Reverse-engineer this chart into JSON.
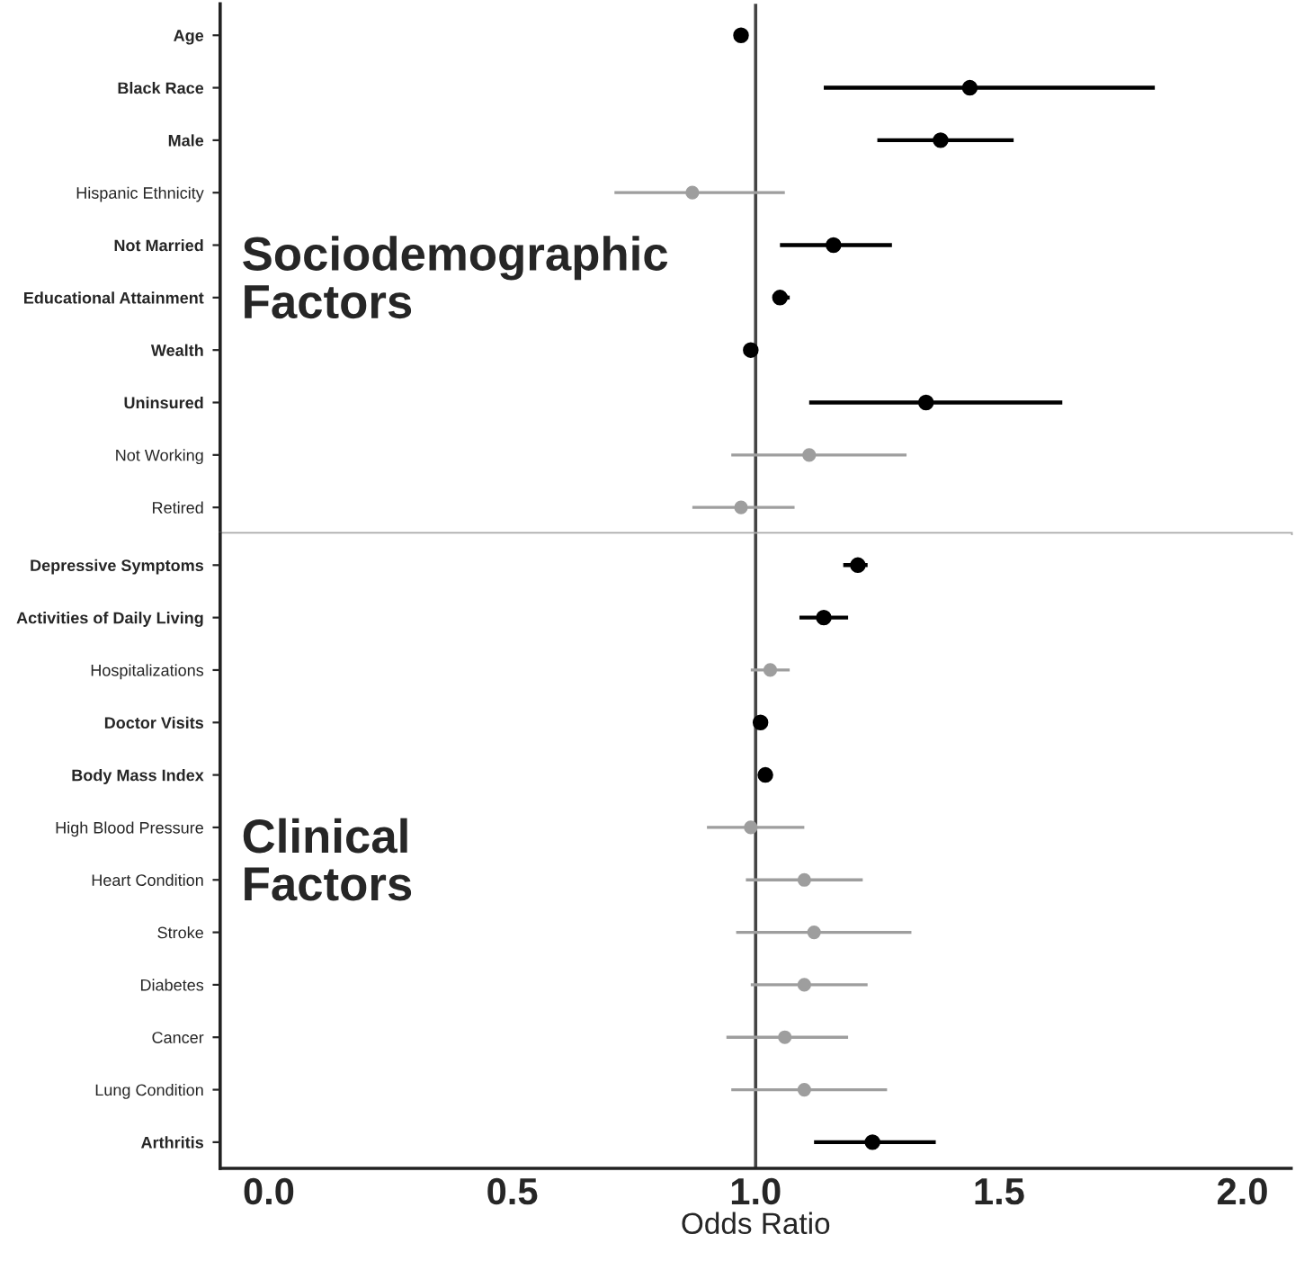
{
  "chart_data": [
    {
      "type": "scatter",
      "orientation": "horizontal",
      "tick_labels": "y",
      "categories": [
        "Age",
        "Black Race",
        "Male",
        "Hispanic Ethnicity",
        "Not Married",
        "Educational Attainment",
        "Wealth",
        "Uninsured",
        "Not Working",
        "Retired"
      ],
      "series": [
        {
          "color": "#000000",
          "values": [
            0.97,
            1.44,
            1.38,
            null,
            1.16,
            1.05,
            0.99,
            1.35,
            null,
            null
          ],
          "errors": [
            null,
            [
              1.14,
              1.82
            ],
            [
              1.25,
              1.53
            ],
            null,
            [
              1.05,
              1.28
            ],
            [
              1.035,
              1.07
            ],
            null,
            [
              1.11,
              1.63
            ],
            null,
            null
          ]
        },
        {
          "color": "#9e9e9e",
          "values": [
            null,
            null,
            null,
            0.87,
            null,
            null,
            null,
            null,
            1.11,
            0.97
          ],
          "errors": [
            null,
            null,
            null,
            [
              0.71,
              1.06
            ],
            null,
            null,
            null,
            null,
            [
              0.95,
              1.31
            ],
            [
              0.87,
              1.08
            ]
          ]
        }
      ],
      "xlim": [
        -0.1,
        2.1
      ],
      "marker": "circle",
      "grid": false,
      "ref_lines": [
        {
          "axis": "x",
          "value": 1.0,
          "color": "#444444"
        }
      ],
      "annotations": [
        "Sociodemographic\nFactors"
      ]
    },
    {
      "type": "scatter",
      "orientation": "horizontal",
      "categories": [
        "Depressive Symptoms",
        "Activities of Daily Living",
        "Hospitalizations",
        "Doctor Visits",
        "Body Mass Index",
        "High Blood Pressure",
        "Heart Condition",
        "Stroke",
        "Diabetes",
        "Cancer",
        "Lung Condition",
        "Arthritis"
      ],
      "series": [
        {
          "color": "#000000",
          "values": [
            1.21,
            1.14,
            null,
            1.01,
            1.02,
            null,
            null,
            null,
            null,
            null,
            null,
            1.24
          ],
          "errors": [
            [
              1.18,
              1.23
            ],
            [
              1.09,
              1.19
            ],
            null,
            null,
            null,
            null,
            null,
            null,
            null,
            null,
            null,
            [
              1.12,
              1.37
            ]
          ]
        },
        {
          "color": "#9e9e9e",
          "values": [
            null,
            null,
            1.03,
            null,
            null,
            0.99,
            1.1,
            1.12,
            1.1,
            1.06,
            1.1,
            null
          ],
          "errors": [
            null,
            null,
            [
              0.99,
              1.07
            ],
            null,
            null,
            [
              0.9,
              1.1
            ],
            [
              0.98,
              1.22
            ],
            [
              0.96,
              1.32
            ],
            [
              0.99,
              1.23
            ],
            [
              0.94,
              1.19
            ],
            [
              0.95,
              1.27
            ],
            null
          ]
        }
      ],
      "xlim": [
        -0.1,
        2.1
      ],
      "xticks": [
        {
          "value": 0,
          "label": "0.0"
        },
        0.5,
        {
          "value": 1,
          "label": "1.0"
        },
        1.5,
        {
          "value": 2,
          "label": "2.0"
        }
      ],
      "xlabel": "Odds Ratio",
      "marker": "circle",
      "grid": false,
      "ref_lines": [
        {
          "axis": "x",
          "value": 1.0,
          "color": "#444444"
        }
      ],
      "annotations": [
        "Clinical\nFactors"
      ]
    }
  ]
}
